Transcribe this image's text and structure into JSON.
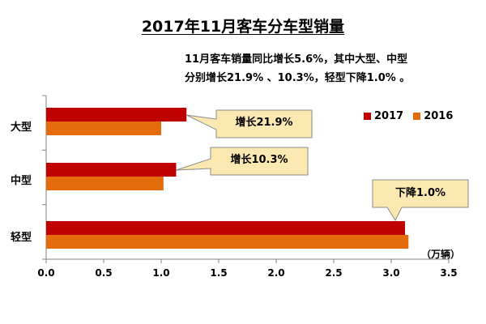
{
  "chart_data": {
    "type": "bar",
    "orientation": "horizontal",
    "title": "2017年11月客车分车型销量",
    "note_lines": [
      "11月客车销量同比增长5.6%，其中大型、中型",
      "分别增长21.9% 、10.3%，轻型下降1.0% 。"
    ],
    "categories": [
      "大型",
      "中型",
      "轻型"
    ],
    "series": [
      {
        "name": "2017",
        "values": [
          1.22,
          1.13,
          3.12
        ],
        "color": "#C00000"
      },
      {
        "name": "2016",
        "values": [
          1.0,
          1.02,
          3.15
        ],
        "color": "#E46C0A"
      }
    ],
    "xlim": [
      0.0,
      3.5
    ],
    "xticks": [
      "0.0",
      "0.5",
      "1.0",
      "1.5",
      "2.0",
      "2.5",
      "3.0",
      "3.5"
    ],
    "unit": "（万辆）",
    "annotations": [
      "增长21.9%",
      "增长10.3%",
      "下降1.0%"
    ],
    "legend_position": "top-right",
    "grid": false
  }
}
